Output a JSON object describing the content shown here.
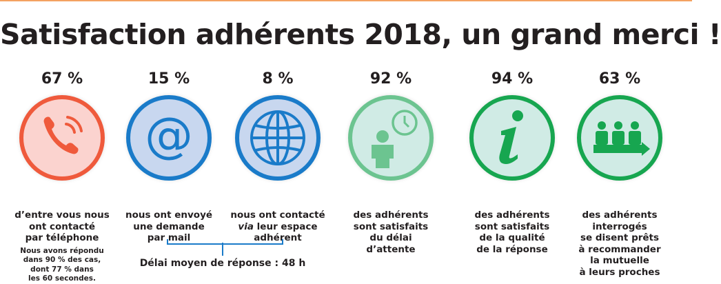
{
  "title": "Satisfaction adhérents 2018, un grand merci !",
  "colors": {
    "red": "#ef5a3c",
    "red_fill": "#fbd3cf",
    "blue": "#1a7bc9",
    "blue_fill": "#c8d7ef",
    "light_green": "#6cc490",
    "dark_green": "#17a650",
    "green_fill": "#d0ebe5"
  },
  "stats": [
    {
      "value": "67 %",
      "icon": "phone-icon",
      "lines": [
        "d’entre vous nous",
        "ont contacté",
        "par téléphone"
      ],
      "note": [
        "Nous avons répondu",
        "dans 90 % des cas,",
        "dont 77 % dans",
        "les 60 secondes."
      ]
    },
    {
      "value": "15 %",
      "icon": "at-sign-icon",
      "lines": [
        "nous ont envoyé",
        "une demande",
        "par mail"
      ]
    },
    {
      "value": "8 %",
      "icon": "globe-icon",
      "lines": [
        "nous ont contacté",
        "via",
        "leur espace",
        "adhérent"
      ]
    },
    {
      "value": "92 %",
      "icon": "person-clock-icon",
      "lines": [
        "des adhérents",
        "sont satisfaits",
        "du délai",
        "d’attente"
      ]
    },
    {
      "value": "94 %",
      "icon": "info-icon",
      "lines": [
        "des adhérents",
        "sont satisfaits",
        "de la qualité",
        "de la réponse"
      ]
    },
    {
      "value": "63 %",
      "icon": "group-arrow-icon",
      "lines": [
        "des adhérents",
        "interrogés",
        "se disent prêts",
        "à recommander",
        "la mutuelle",
        "à leurs proches"
      ]
    }
  ],
  "delay_label": "Délai moyen de réponse : 48 h"
}
